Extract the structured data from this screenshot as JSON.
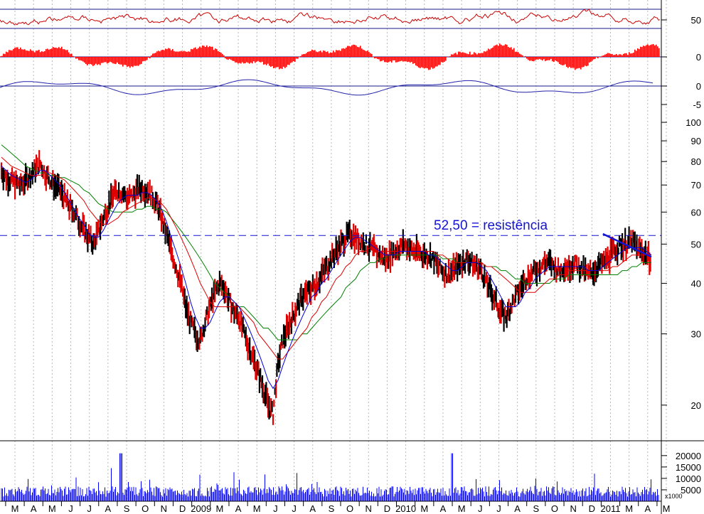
{
  "chart_data": {
    "type": "line",
    "title": "",
    "time_axis": {
      "labels": [
        "M",
        "A",
        "M",
        "J",
        "J",
        "A",
        "S",
        "O",
        "N",
        "D",
        "2009",
        "M",
        "A",
        "M",
        "J",
        "J",
        "A",
        "S",
        "O",
        "N",
        "D",
        "2010",
        "M",
        "A",
        "M",
        "J",
        "J",
        "A",
        "S",
        "O",
        "N",
        "D",
        "2011",
        "M",
        "A",
        "M"
      ]
    },
    "panels": {
      "oscillator_1": {
        "y_ticks": [
          50
        ],
        "levels": [
          50,
          80
        ],
        "color": "#cc0000"
      },
      "histogram": {
        "y_ticks": [
          0
        ],
        "color": "#ff0000"
      },
      "oscillator_2": {
        "y_ticks": [
          0,
          -5
        ],
        "color": "#2222aa"
      },
      "price": {
        "scale": "log",
        "y_ticks": [
          20,
          30,
          40,
          50,
          60,
          70,
          80,
          90,
          100
        ],
        "ylim": [
          17,
          105
        ],
        "close": [
          76,
          73,
          72,
          71,
          70,
          72,
          74,
          77,
          79,
          75,
          72,
          70,
          68,
          65,
          62,
          60,
          57,
          54,
          52,
          50,
          54,
          58,
          62,
          66,
          68,
          67,
          65,
          66,
          68,
          69,
          68,
          66,
          63,
          58,
          53,
          48,
          44,
          40,
          35,
          32,
          30,
          29,
          32,
          35,
          38,
          40,
          39,
          36,
          34,
          33,
          30,
          28,
          26,
          24,
          22,
          20,
          19,
          25,
          29,
          31,
          33,
          35,
          37,
          38,
          39,
          40,
          42,
          44,
          46,
          48,
          50,
          52,
          53,
          52,
          51,
          50,
          49,
          48,
          47,
          46,
          47,
          48,
          49,
          50,
          49,
          48,
          48,
          47,
          47,
          46,
          44,
          43,
          42,
          43,
          44,
          45,
          46,
          45,
          44,
          43,
          40,
          38,
          36,
          34,
          33,
          35,
          37,
          39,
          41,
          42,
          43,
          44,
          45,
          45,
          44,
          43,
          44,
          44,
          45,
          44,
          43,
          42,
          43,
          44,
          45,
          46,
          48,
          49,
          50,
          50,
          51,
          49,
          48,
          47,
          46
        ],
        "sma_short": [
          78,
          76,
          74,
          73,
          72,
          71,
          72,
          74,
          76,
          76,
          74,
          72,
          70,
          67,
          64,
          61,
          58,
          56,
          53,
          52,
          52,
          54,
          57,
          60,
          63,
          65,
          66,
          66,
          66,
          67,
          67,
          66,
          64,
          61,
          57,
          52,
          48,
          44,
          40,
          36,
          33,
          31,
          31,
          32,
          34,
          36,
          37,
          37,
          36,
          35,
          33,
          31,
          29,
          27,
          25,
          23,
          22,
          23,
          25,
          27,
          29,
          31,
          33,
          35,
          37,
          38,
          40,
          41,
          43,
          45,
          47,
          49,
          51,
          52,
          52,
          51,
          50,
          49,
          48,
          47,
          47,
          47,
          48,
          48,
          48,
          48,
          48,
          48,
          47,
          47,
          46,
          45,
          44,
          43,
          43,
          44,
          45,
          45,
          45,
          44,
          43,
          41,
          39,
          37,
          35,
          35,
          35,
          36,
          38,
          39,
          41,
          42,
          43,
          44,
          44,
          44,
          44,
          44,
          44,
          44,
          44,
          43,
          43,
          43,
          44,
          45,
          46,
          47,
          48,
          49,
          49,
          49,
          49,
          48,
          47
        ],
        "sma_mid": [
          82,
          80,
          78,
          77,
          76,
          75,
          74,
          74,
          74,
          75,
          75,
          74,
          73,
          72,
          70,
          68,
          66,
          64,
          61,
          59,
          57,
          56,
          56,
          57,
          58,
          60,
          61,
          62,
          63,
          64,
          65,
          65,
          64,
          63,
          61,
          58,
          55,
          52,
          49,
          46,
          43,
          40,
          38,
          36,
          35,
          35,
          35,
          35,
          35,
          35,
          34,
          33,
          32,
          30,
          29,
          28,
          27,
          26,
          26,
          27,
          28,
          29,
          30,
          31,
          33,
          34,
          36,
          37,
          39,
          41,
          42,
          44,
          45,
          47,
          48,
          48,
          49,
          49,
          48,
          48,
          48,
          48,
          48,
          48,
          48,
          48,
          48,
          48,
          48,
          48,
          47,
          47,
          46,
          45,
          45,
          45,
          45,
          45,
          45,
          45,
          44,
          44,
          43,
          42,
          41,
          40,
          39,
          38,
          38,
          38,
          38,
          39,
          40,
          41,
          41,
          42,
          42,
          43,
          43,
          43,
          43,
          43,
          43,
          43,
          43,
          43,
          44,
          44,
          45,
          46,
          47,
          47,
          47,
          47,
          47
        ],
        "sma_long": [
          88,
          86,
          84,
          82,
          80,
          78,
          77,
          76,
          75,
          75,
          74,
          74,
          73,
          73,
          72,
          71,
          70,
          68,
          67,
          65,
          63,
          62,
          61,
          60,
          60,
          60,
          60,
          60,
          61,
          61,
          62,
          62,
          61,
          61,
          60,
          58,
          56,
          54,
          52,
          50,
          48,
          46,
          44,
          42,
          40,
          39,
          38,
          37,
          36,
          35,
          35,
          34,
          33,
          32,
          31,
          31,
          30,
          29,
          29,
          29,
          29,
          29,
          30,
          30,
          31,
          32,
          33,
          34,
          35,
          36,
          37,
          39,
          40,
          41,
          43,
          44,
          45,
          45,
          46,
          46,
          47,
          47,
          47,
          47,
          47,
          47,
          47,
          47,
          47,
          47,
          47,
          46,
          46,
          46,
          45,
          45,
          45,
          45,
          45,
          45,
          44,
          44,
          44,
          43,
          43,
          42,
          41,
          41,
          40,
          40,
          40,
          40,
          40,
          40,
          41,
          41,
          41,
          42,
          42,
          42,
          42,
          42,
          42,
          42,
          42,
          42,
          42,
          42,
          43,
          43,
          44,
          44,
          45,
          45,
          45
        ],
        "annotations": [
          {
            "text": "52,50 = resistência",
            "value": 52.5,
            "kind": "horizontal-dashed"
          },
          {
            "kind": "trendline",
            "from": {
              "i": 124,
              "v": 53
            },
            "to": {
              "i": 134,
              "v": 46.5
            }
          }
        ]
      },
      "volume": {
        "y_ticks": [
          5000,
          10000,
          15000,
          20000
        ],
        "unit_label": "x1000",
        "ylim": [
          0,
          24000
        ],
        "color": "#0000ff"
      }
    }
  }
}
